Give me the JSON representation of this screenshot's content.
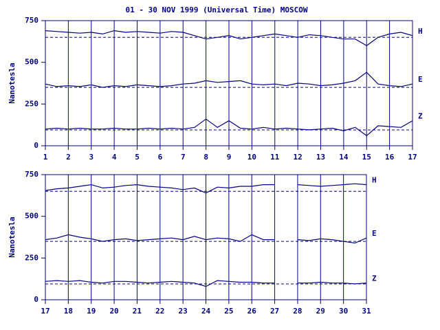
{
  "chart_data": [
    {
      "type": "line",
      "title": "01 - 30 NOV 1999 (Universal Time) MOSCOW",
      "y_label": "Nanotesla",
      "x": [
        1,
        1.5,
        2,
        2.5,
        3,
        3.5,
        4,
        4.5,
        5,
        5.5,
        6,
        6.5,
        7,
        7.5,
        8,
        8.5,
        9,
        9.5,
        10,
        10.5,
        11,
        11.5,
        12,
        12.5,
        13,
        13.5,
        14,
        14.5,
        15,
        15.5,
        16,
        16.5,
        17
      ],
      "xlim": [
        1,
        17
      ],
      "xticks": [
        1,
        2,
        3,
        4,
        5,
        6,
        7,
        8,
        9,
        10,
        11,
        12,
        13,
        14,
        15,
        16,
        17
      ],
      "ylim": [
        0,
        750
      ],
      "yticks": [
        0,
        250,
        500,
        750
      ],
      "grid": true,
      "reference_lines": [
        650,
        350,
        95
      ],
      "series": [
        {
          "name": "H",
          "color": "#000080",
          "values": [
            690,
            685,
            680,
            675,
            680,
            670,
            690,
            680,
            685,
            680,
            675,
            685,
            680,
            660,
            640,
            650,
            660,
            640,
            650,
            660,
            670,
            660,
            650,
            665,
            660,
            650,
            640,
            640,
            600,
            650,
            670,
            680,
            660
          ]
        },
        {
          "name": "E",
          "color": "#000080",
          "values": [
            370,
            355,
            360,
            355,
            365,
            350,
            360,
            355,
            365,
            360,
            355,
            360,
            370,
            375,
            390,
            380,
            385,
            390,
            370,
            365,
            370,
            360,
            375,
            370,
            360,
            365,
            375,
            390,
            440,
            370,
            360,
            355,
            370
          ]
        },
        {
          "name": "Z",
          "color": "#000080",
          "values": [
            100,
            105,
            100,
            105,
            100,
            100,
            105,
            100,
            100,
            105,
            100,
            105,
            100,
            110,
            160,
            110,
            150,
            105,
            100,
            110,
            100,
            105,
            100,
            95,
            100,
            105,
            90,
            110,
            60,
            120,
            115,
            110,
            150
          ]
        }
      ]
    },
    {
      "type": "line",
      "y_label": "Nanotesla",
      "x": [
        17,
        17.5,
        18,
        18.5,
        19,
        19.5,
        20,
        20.5,
        21,
        21.5,
        22,
        22.5,
        23,
        23.5,
        24,
        24.5,
        25,
        25.5,
        26,
        26.5,
        27,
        27.5,
        28,
        28.5,
        29,
        29.5,
        30,
        30.5,
        31
      ],
      "xlim": [
        17,
        31
      ],
      "xticks": [
        17,
        18,
        19,
        20,
        21,
        22,
        23,
        24,
        25,
        26,
        27,
        28,
        29,
        30,
        31
      ],
      "ylim": [
        0,
        750
      ],
      "yticks": [
        0,
        250,
        500,
        750
      ],
      "grid": true,
      "reference_lines": [
        650,
        350,
        95
      ],
      "series": [
        {
          "name": "H",
          "color": "#000080",
          "values": [
            655,
            665,
            670,
            680,
            690,
            670,
            675,
            685,
            690,
            680,
            675,
            670,
            660,
            670,
            640,
            675,
            670,
            680,
            680,
            690,
            690,
            null,
            690,
            685,
            680,
            685,
            690,
            695,
            690
          ]
        },
        {
          "name": "E",
          "color": "#000080",
          "values": [
            360,
            370,
            390,
            375,
            365,
            350,
            360,
            365,
            355,
            360,
            365,
            370,
            360,
            380,
            360,
            370,
            365,
            350,
            390,
            360,
            360,
            null,
            360,
            355,
            365,
            360,
            350,
            340,
            370
          ]
        },
        {
          "name": "Z",
          "color": "#000080",
          "values": [
            110,
            115,
            110,
            115,
            105,
            100,
            110,
            110,
            105,
            100,
            105,
            110,
            105,
            100,
            80,
            115,
            110,
            105,
            105,
            100,
            100,
            null,
            100,
            100,
            105,
            100,
            100,
            95,
            100
          ]
        }
      ]
    }
  ]
}
